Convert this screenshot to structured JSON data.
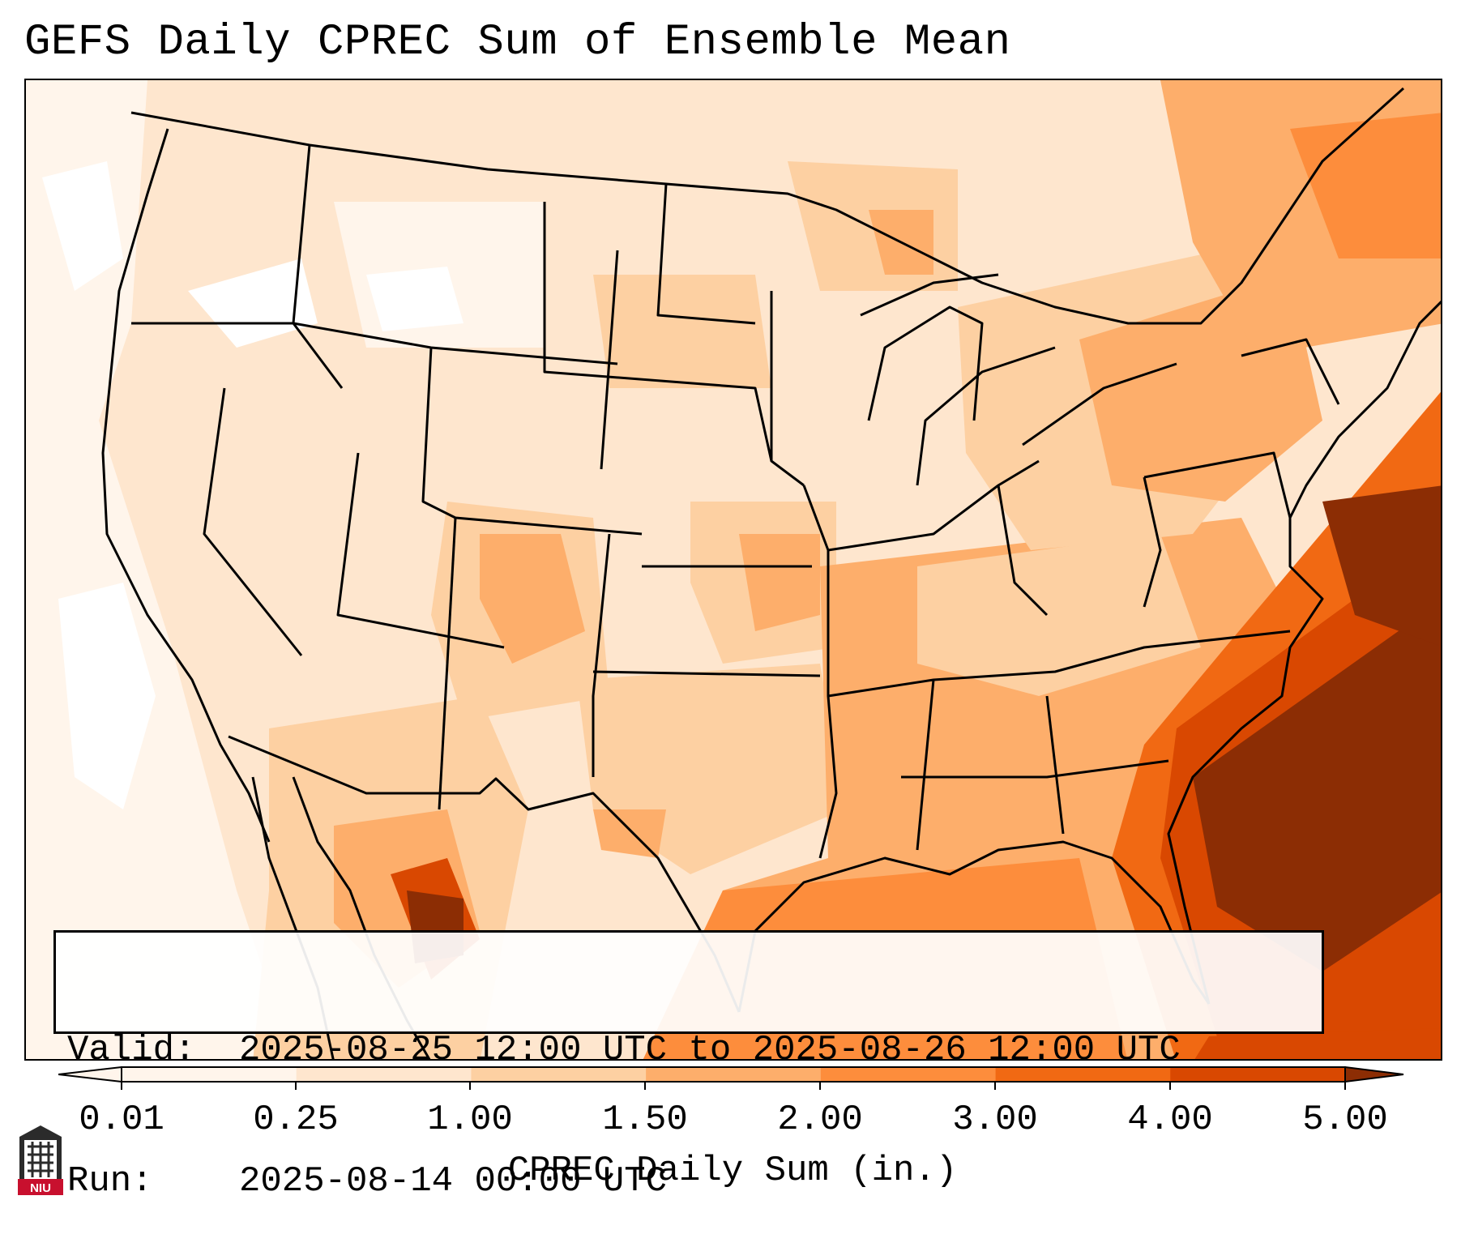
{
  "title": "GEFS Daily CPREC Sum of Ensemble Mean",
  "info": {
    "valid_label": "Valid:",
    "valid_value": "2025-08-25 12:00 UTC to 2025-08-26 12:00 UTC",
    "run_label": "Run:",
    "run_value": "2025-08-14 00:00 UTC"
  },
  "colorbar": {
    "label": "CPREC Daily Sum (in.)",
    "ticks": [
      "0.01",
      "0.25",
      "1.00",
      "1.50",
      "2.00",
      "3.00",
      "4.00",
      "5.00"
    ],
    "colors": [
      "#fff5eb",
      "#fee6ce",
      "#fdd0a2",
      "#fdae6b",
      "#fd8d3c",
      "#f16913",
      "#d94801",
      "#8c2d04"
    ]
  },
  "logo": {
    "text": "NIU"
  }
}
